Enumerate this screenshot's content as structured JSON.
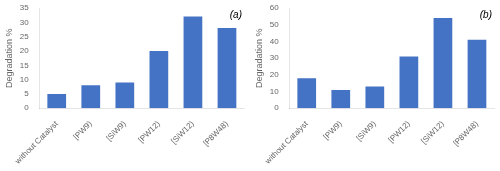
{
  "chart_data": [
    {
      "type": "bar",
      "categories": [
        "without Catalyst",
        "[PW9)",
        "[SiW9)",
        "[PW12)",
        "[SiW12)",
        "[P8W48)"
      ],
      "values": [
        5,
        8,
        9,
        20,
        32,
        28
      ],
      "color": "#4472C4",
      "ylabel": "Degradation %",
      "ylim": [
        0,
        35
      ],
      "yticks": [
        0,
        5,
        10,
        15,
        20,
        25,
        30,
        35
      ],
      "annotations": [
        "(a)"
      ],
      "grid": false
    },
    {
      "type": "bar",
      "categories": [
        "without Catalyst",
        "[PW9)",
        "[SiW9)",
        "[PW12)",
        "[SiW12)",
        "[P8W48)"
      ],
      "values": [
        18,
        11,
        13,
        31,
        54,
        41
      ],
      "color": "#4472C4",
      "ylabel": "Degradation %",
      "ylim": [
        0,
        60
      ],
      "yticks": [
        0,
        10,
        20,
        30,
        40,
        50,
        60
      ],
      "annotations": [
        "(b)"
      ],
      "grid": false
    }
  ]
}
